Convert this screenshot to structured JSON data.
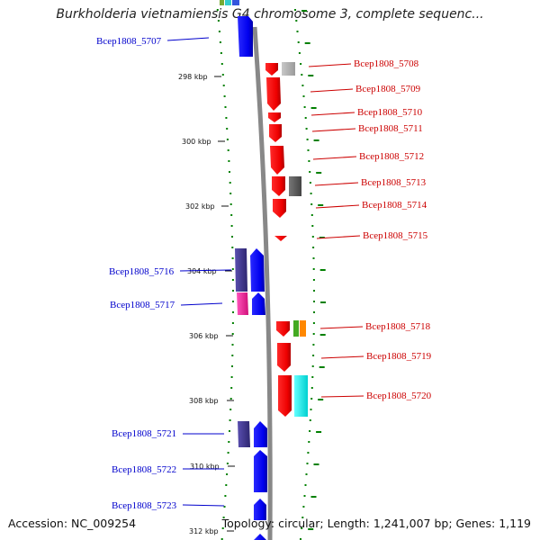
{
  "title": "Burkholderia vietnamiensis G4 chromosome 3, complete sequenc...",
  "accession": "Accession: NC_009254",
  "topology": "Topology: circular; Length: 1,241,007 bp; Genes: 1,119",
  "ticks": [
    "298 kbp",
    "300 kbp",
    "302 kbp",
    "304 kbp",
    "306 kbp",
    "308 kbp",
    "310 kbp",
    "312 kbp"
  ],
  "colors": {
    "forward": "#ff0000",
    "reverse": "#0000ff",
    "reverse_label": "#0000cc",
    "forward_label": "#cc0000",
    "tick_mark": "#008000",
    "backbone": "#888888"
  },
  "genes_left": [
    "Bcep1808_5707",
    "Bcep1808_5716",
    "Bcep1808_5717",
    "Bcep1808_5721",
    "Bcep1808_5722",
    "Bcep1808_5723"
  ],
  "genes_right": [
    "Bcep1808_5708",
    "Bcep1808_5709",
    "Bcep1808_5710",
    "Bcep1808_5711",
    "Bcep1808_5712",
    "Bcep1808_5713",
    "Bcep1808_5714",
    "Bcep1808_5715",
    "Bcep1808_5718",
    "Bcep1808_5719",
    "Bcep1808_5720"
  ]
}
